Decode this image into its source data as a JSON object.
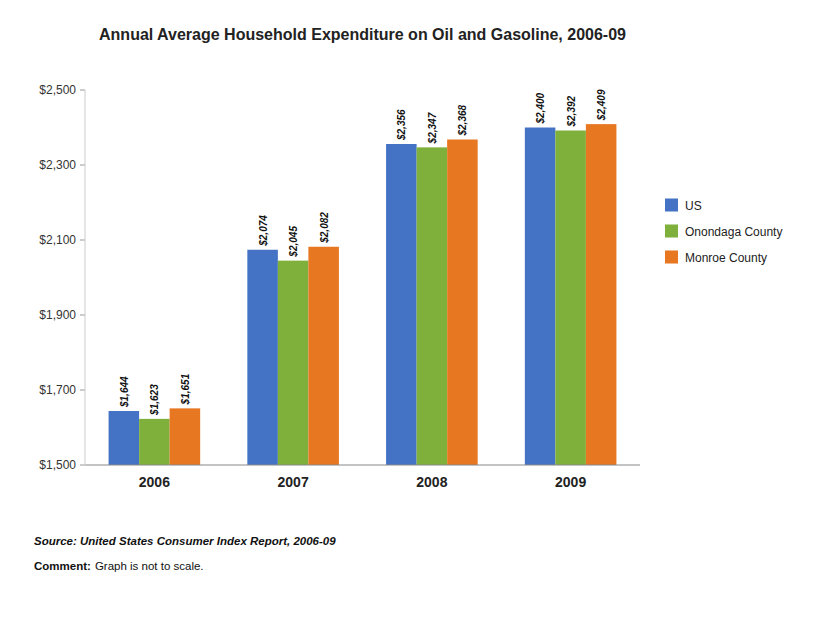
{
  "chart_data": {
    "type": "bar",
    "title": "Annual Average Household Expenditure on Oil and Gasoline, 2006-09",
    "categories": [
      "2006",
      "2007",
      "2008",
      "2009"
    ],
    "series": [
      {
        "name": "US",
        "color": "#4472C4",
        "values": [
          1644,
          2074,
          2356,
          2400
        ],
        "value_labels": [
          "$1,644",
          "$2,074",
          "$2,356",
          "$2,400"
        ]
      },
      {
        "name": "Onondaga County",
        "color": "#7FB03B",
        "values": [
          1623,
          2045,
          2347,
          2392
        ],
        "value_labels": [
          "$1,623",
          "$2,045",
          "$2,347",
          "$2,392"
        ]
      },
      {
        "name": "Monroe County",
        "color": "#E87722",
        "values": [
          1651,
          2082,
          2368,
          2409
        ],
        "value_labels": [
          "$1,651",
          "$2,082",
          "$2,368",
          "$2,409"
        ]
      }
    ],
    "ylim": [
      1500,
      2500
    ],
    "yticks": [
      {
        "value": 1500,
        "label": "$1,500"
      },
      {
        "value": 1700,
        "label": "$1,700"
      },
      {
        "value": 1900,
        "label": "$1,900"
      },
      {
        "value": 2100,
        "label": "$2,100"
      },
      {
        "value": 2300,
        "label": "$2,300"
      },
      {
        "value": 2500,
        "label": "$2,500"
      }
    ],
    "grid": false,
    "legend": "right",
    "data_labels": true,
    "annotations": [
      "Source: United States Consumer Index Report, 2006-09",
      "Comment:",
      "Graph is not to scale."
    ]
  }
}
